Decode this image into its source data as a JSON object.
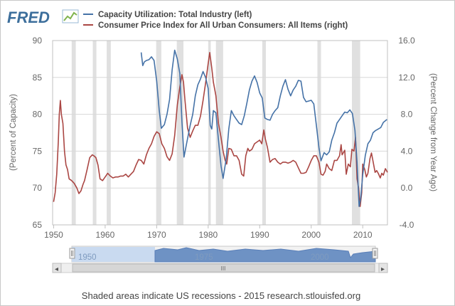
{
  "header": {
    "logo_text": "FRED"
  },
  "footer": {
    "note": "Shaded areas indicate US recessions - 2015 research.stlouisfed.org"
  },
  "colors": {
    "capacity_line": "#4572a7",
    "cpi_line": "#aa4643",
    "recession_band": "#e0e0e0",
    "grid": "#d8d8d8",
    "axis_text": "#666666"
  },
  "navigator": {
    "labels": [
      "1950",
      "1975",
      "2000"
    ],
    "scroll_glyph": "III",
    "left_arrow": "◂",
    "right_arrow": "▸"
  },
  "chart_data": {
    "type": "line",
    "grid": true,
    "legend_placement": "top",
    "x_ticks": [
      "1950",
      "1960",
      "1970",
      "1980",
      "1990",
      "2000",
      "2010"
    ],
    "xlim": [
      1949.8,
      2014.8
    ],
    "left_axis": {
      "label": "(Percent of Capacity)",
      "ticks": [
        "90",
        "85",
        "80",
        "75",
        "70",
        "65"
      ],
      "ylim": [
        65,
        90
      ]
    },
    "right_axis": {
      "label": "(Percent Change from Year Ago)",
      "ticks": [
        "16.0",
        "12.0",
        "8.0",
        "4.0",
        "0.0",
        "-4.0"
      ],
      "ylim": [
        -4,
        16
      ]
    },
    "recessions": [
      [
        1953.5,
        1954.3
      ],
      [
        1957.6,
        1958.3
      ],
      [
        1960.3,
        1961.1
      ],
      [
        1969.9,
        1970.9
      ],
      [
        1973.9,
        1975.2
      ],
      [
        1980.0,
        1980.5
      ],
      [
        1981.5,
        1982.9
      ],
      [
        1990.5,
        1991.2
      ],
      [
        2001.2,
        2001.9
      ],
      [
        2007.9,
        2009.5
      ]
    ],
    "series": [
      {
        "name": "Capacity Utilization: Total Industry (left)",
        "axis": "left",
        "points": [
          [
            1967.0,
            88.4
          ],
          [
            1967.3,
            86.6
          ],
          [
            1967.6,
            87.1
          ],
          [
            1968.0,
            87.3
          ],
          [
            1968.5,
            87.4
          ],
          [
            1969.0,
            87.8
          ],
          [
            1969.5,
            87.3
          ],
          [
            1970.0,
            84.5
          ],
          [
            1970.5,
            80.5
          ],
          [
            1970.9,
            78.1
          ],
          [
            1971.5,
            78.6
          ],
          [
            1972.0,
            80.0
          ],
          [
            1972.5,
            82.0
          ],
          [
            1973.0,
            86.0
          ],
          [
            1973.5,
            88.7
          ],
          [
            1974.0,
            87.5
          ],
          [
            1974.5,
            85.5
          ],
          [
            1974.9,
            79.0
          ],
          [
            1975.3,
            74.2
          ],
          [
            1975.8,
            76.0
          ],
          [
            1976.5,
            78.5
          ],
          [
            1977.0,
            80.0
          ],
          [
            1977.5,
            82.5
          ],
          [
            1978.0,
            84.0
          ],
          [
            1978.5,
            84.8
          ],
          [
            1979.0,
            85.8
          ],
          [
            1979.5,
            85.0
          ],
          [
            1980.0,
            83.5
          ],
          [
            1980.4,
            78.5
          ],
          [
            1980.7,
            78.0
          ],
          [
            1981.0,
            80.5
          ],
          [
            1981.5,
            80.2
          ],
          [
            1982.0,
            76.5
          ],
          [
            1982.5,
            73.0
          ],
          [
            1982.9,
            71.3
          ],
          [
            1983.5,
            74.0
          ],
          [
            1984.0,
            78.0
          ],
          [
            1984.5,
            80.5
          ],
          [
            1985.0,
            79.8
          ],
          [
            1985.5,
            79.3
          ],
          [
            1986.0,
            78.8
          ],
          [
            1986.5,
            78.6
          ],
          [
            1987.0,
            79.8
          ],
          [
            1987.5,
            81.5
          ],
          [
            1988.0,
            83.3
          ],
          [
            1988.5,
            84.5
          ],
          [
            1989.0,
            85.2
          ],
          [
            1989.5,
            84.3
          ],
          [
            1990.0,
            82.9
          ],
          [
            1990.5,
            82.2
          ],
          [
            1991.0,
            79.5
          ],
          [
            1991.5,
            79.3
          ],
          [
            1992.0,
            79.2
          ],
          [
            1992.5,
            80.0
          ],
          [
            1993.0,
            80.5
          ],
          [
            1993.5,
            80.9
          ],
          [
            1994.0,
            82.5
          ],
          [
            1994.5,
            83.8
          ],
          [
            1995.0,
            84.7
          ],
          [
            1995.5,
            83.4
          ],
          [
            1996.0,
            82.5
          ],
          [
            1996.5,
            83.3
          ],
          [
            1997.0,
            83.8
          ],
          [
            1997.5,
            84.6
          ],
          [
            1998.0,
            84.5
          ],
          [
            1998.5,
            82.3
          ],
          [
            1999.0,
            81.7
          ],
          [
            1999.5,
            81.8
          ],
          [
            2000.0,
            81.9
          ],
          [
            2000.5,
            81.4
          ],
          [
            2001.0,
            78.5
          ],
          [
            2001.5,
            75.5
          ],
          [
            2001.9,
            73.7
          ],
          [
            2002.5,
            74.8
          ],
          [
            2003.0,
            74.5
          ],
          [
            2003.5,
            74.9
          ],
          [
            2004.0,
            76.5
          ],
          [
            2004.5,
            77.5
          ],
          [
            2005.0,
            78.8
          ],
          [
            2005.5,
            79.3
          ],
          [
            2006.0,
            79.8
          ],
          [
            2006.5,
            80.3
          ],
          [
            2007.0,
            80.2
          ],
          [
            2007.5,
            80.6
          ],
          [
            2008.0,
            80.1
          ],
          [
            2008.5,
            77.8
          ],
          [
            2008.9,
            73.5
          ],
          [
            2009.3,
            67.5
          ],
          [
            2009.6,
            68.5
          ],
          [
            2010.0,
            71.8
          ],
          [
            2010.5,
            74.4
          ],
          [
            2011.0,
            76.0
          ],
          [
            2011.5,
            76.5
          ],
          [
            2012.0,
            77.5
          ],
          [
            2012.5,
            77.8
          ],
          [
            2013.0,
            78.0
          ],
          [
            2013.5,
            78.2
          ],
          [
            2014.0,
            78.9
          ],
          [
            2014.7,
            79.3
          ]
        ]
      },
      {
        "name": "Consumer Price Index for All Urban Consumers: All Items (right)",
        "axis": "right",
        "points": [
          [
            1950.0,
            -1.5
          ],
          [
            1950.3,
            -0.5
          ],
          [
            1950.6,
            1.5
          ],
          [
            1950.9,
            5.0
          ],
          [
            1951.1,
            8.0
          ],
          [
            1951.3,
            9.5
          ],
          [
            1951.5,
            8.0
          ],
          [
            1951.8,
            7.0
          ],
          [
            1952.1,
            4.0
          ],
          [
            1952.4,
            2.5
          ],
          [
            1952.7,
            2.0
          ],
          [
            1953.0,
            1.0
          ],
          [
            1953.5,
            0.8
          ],
          [
            1954.0,
            0.5
          ],
          [
            1954.5,
            0.0
          ],
          [
            1954.9,
            -0.6
          ],
          [
            1955.3,
            -0.3
          ],
          [
            1955.7,
            0.4
          ],
          [
            1956.0,
            0.8
          ],
          [
            1956.5,
            2.0
          ],
          [
            1957.0,
            3.3
          ],
          [
            1957.5,
            3.6
          ],
          [
            1957.8,
            3.5
          ],
          [
            1958.2,
            3.3
          ],
          [
            1958.6,
            2.5
          ],
          [
            1959.0,
            1.0
          ],
          [
            1959.5,
            0.8
          ],
          [
            1960.0,
            1.2
          ],
          [
            1960.5,
            1.6
          ],
          [
            1961.0,
            1.3
          ],
          [
            1961.5,
            1.1
          ],
          [
            1962.0,
            1.2
          ],
          [
            1962.5,
            1.2
          ],
          [
            1963.0,
            1.3
          ],
          [
            1963.5,
            1.3
          ],
          [
            1964.0,
            1.5
          ],
          [
            1964.5,
            1.2
          ],
          [
            1965.0,
            1.5
          ],
          [
            1965.5,
            1.8
          ],
          [
            1966.0,
            2.5
          ],
          [
            1966.5,
            3.1
          ],
          [
            1967.0,
            3.0
          ],
          [
            1967.5,
            2.6
          ],
          [
            1968.0,
            3.6
          ],
          [
            1968.5,
            4.3
          ],
          [
            1969.0,
            4.8
          ],
          [
            1969.5,
            5.6
          ],
          [
            1970.0,
            6.1
          ],
          [
            1970.5,
            5.9
          ],
          [
            1971.0,
            4.8
          ],
          [
            1971.5,
            4.3
          ],
          [
            1972.0,
            3.4
          ],
          [
            1972.5,
            3.0
          ],
          [
            1973.0,
            3.7
          ],
          [
            1973.5,
            5.7
          ],
          [
            1974.0,
            9.0
          ],
          [
            1974.5,
            11.0
          ],
          [
            1974.9,
            12.3
          ],
          [
            1975.2,
            11.5
          ],
          [
            1975.5,
            9.5
          ],
          [
            1976.0,
            6.5
          ],
          [
            1976.5,
            5.5
          ],
          [
            1977.0,
            6.2
          ],
          [
            1977.5,
            6.8
          ],
          [
            1978.0,
            6.8
          ],
          [
            1978.5,
            7.8
          ],
          [
            1979.0,
            9.5
          ],
          [
            1979.5,
            11.4
          ],
          [
            1980.0,
            13.5
          ],
          [
            1980.3,
            14.7
          ],
          [
            1980.7,
            13.0
          ],
          [
            1981.0,
            11.5
          ],
          [
            1981.5,
            10.0
          ],
          [
            1982.0,
            7.0
          ],
          [
            1982.5,
            5.5
          ],
          [
            1982.9,
            4.0
          ],
          [
            1983.3,
            3.0
          ],
          [
            1983.6,
            2.6
          ],
          [
            1984.0,
            4.3
          ],
          [
            1984.5,
            4.2
          ],
          [
            1985.0,
            3.5
          ],
          [
            1985.5,
            3.5
          ],
          [
            1986.0,
            3.0
          ],
          [
            1986.5,
            1.5
          ],
          [
            1986.9,
            1.3
          ],
          [
            1987.3,
            3.5
          ],
          [
            1987.7,
            4.3
          ],
          [
            1988.0,
            4.0
          ],
          [
            1988.5,
            4.2
          ],
          [
            1989.0,
            4.8
          ],
          [
            1989.5,
            5.0
          ],
          [
            1990.0,
            5.2
          ],
          [
            1990.4,
            4.8
          ],
          [
            1990.8,
            6.3
          ],
          [
            1991.1,
            5.3
          ],
          [
            1991.5,
            4.4
          ],
          [
            1992.0,
            2.8
          ],
          [
            1992.5,
            3.1
          ],
          [
            1993.0,
            3.2
          ],
          [
            1993.5,
            2.8
          ],
          [
            1994.0,
            2.6
          ],
          [
            1994.5,
            2.8
          ],
          [
            1995.0,
            2.8
          ],
          [
            1995.5,
            2.7
          ],
          [
            1996.0,
            2.8
          ],
          [
            1996.5,
            3.0
          ],
          [
            1997.0,
            2.8
          ],
          [
            1997.5,
            2.2
          ],
          [
            1998.0,
            1.6
          ],
          [
            1998.5,
            1.6
          ],
          [
            1999.0,
            1.7
          ],
          [
            1999.5,
            2.3
          ],
          [
            2000.0,
            3.0
          ],
          [
            2000.5,
            3.5
          ],
          [
            2001.0,
            3.5
          ],
          [
            2001.5,
            2.8
          ],
          [
            2001.9,
            1.5
          ],
          [
            2002.3,
            1.4
          ],
          [
            2002.7,
            1.8
          ],
          [
            2003.0,
            2.6
          ],
          [
            2003.5,
            2.1
          ],
          [
            2004.0,
            1.9
          ],
          [
            2004.5,
            3.0
          ],
          [
            2005.0,
            3.0
          ],
          [
            2005.5,
            3.5
          ],
          [
            2005.8,
            4.7
          ],
          [
            2006.0,
            3.6
          ],
          [
            2006.5,
            4.1
          ],
          [
            2006.8,
            1.5
          ],
          [
            2007.2,
            2.6
          ],
          [
            2007.6,
            2.3
          ],
          [
            2007.9,
            4.2
          ],
          [
            2008.3,
            4.0
          ],
          [
            2008.6,
            5.5
          ],
          [
            2008.9,
            1.0
          ],
          [
            2009.2,
            0.0
          ],
          [
            2009.5,
            -2.0
          ],
          [
            2009.8,
            -0.5
          ],
          [
            2010.0,
            2.6
          ],
          [
            2010.4,
            2.0
          ],
          [
            2010.7,
            1.2
          ],
          [
            2011.0,
            1.6
          ],
          [
            2011.4,
            3.2
          ],
          [
            2011.7,
            3.8
          ],
          [
            2012.0,
            2.9
          ],
          [
            2012.4,
            1.7
          ],
          [
            2012.7,
            1.9
          ],
          [
            2013.0,
            1.6
          ],
          [
            2013.4,
            1.1
          ],
          [
            2013.7,
            1.6
          ],
          [
            2014.0,
            1.4
          ],
          [
            2014.4,
            2.1
          ],
          [
            2014.8,
            1.7
          ]
        ]
      }
    ]
  }
}
